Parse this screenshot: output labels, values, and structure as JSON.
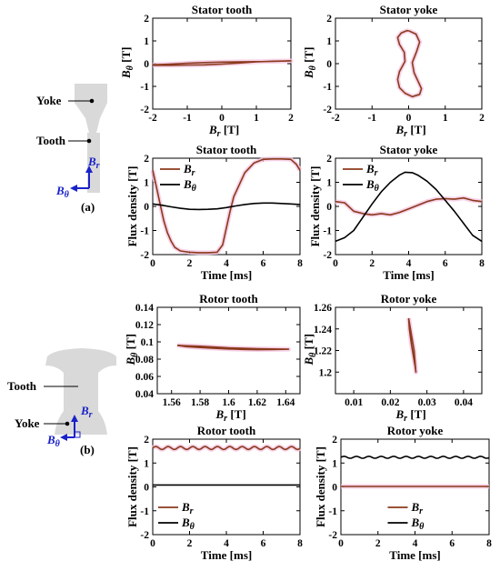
{
  "labels": {
    "yoke_a": "Yoke",
    "tooth_a": "Tooth",
    "br_a": "B",
    "br_a_sub": "r",
    "bt_a": "B",
    "bt_a_sub": "θ",
    "panel_a": "(a)",
    "tooth_b": "Tooth",
    "yoke_b": "Yoke",
    "br_b": "B",
    "br_b_sub": "r",
    "bt_b": "B",
    "bt_b_sub": "θ",
    "panel_b": "(b)"
  },
  "colors": {
    "br": "#8b3a1c",
    "btheta": "#000000",
    "highlight": "#f5c8e4",
    "arrow": "#1a22c8",
    "shape": "#d9d9d9"
  },
  "chart_data": [
    {
      "id": "st_loci",
      "type": "line",
      "title": "Stator tooth",
      "xlabel_main": "B",
      "xlabel_sub": "r",
      "xlabel_unit": " [T]",
      "ylabel_main": "B",
      "ylabel_sub": "θ",
      "ylabel_unit": " [T]",
      "xlim": [
        -2,
        2
      ],
      "ylim": [
        -2,
        2
      ],
      "xticks": [
        -2,
        -1,
        0,
        1,
        2
      ],
      "yticks": [
        -2,
        -1,
        0,
        1,
        2
      ],
      "series": [
        {
          "x": [
            -2,
            -1.5,
            -1,
            -0.5,
            0,
            0.5,
            1,
            1.5,
            2,
            1.5,
            1,
            0.5,
            0,
            -0.5,
            -1,
            -1.5,
            -2
          ],
          "y": [
            -0.05,
            -0.02,
            0.02,
            0.05,
            0.07,
            0.08,
            0.09,
            0.1,
            0.12,
            0.11,
            0.08,
            0.03,
            -0.02,
            -0.05,
            -0.06,
            -0.07,
            -0.07
          ]
        }
      ]
    },
    {
      "id": "sy_loci",
      "type": "line",
      "title": "Stator yoke",
      "xlabel_main": "B",
      "xlabel_sub": "r",
      "xlabel_unit": " [T]",
      "ylabel_main": "B",
      "ylabel_sub": "θ",
      "ylabel_unit": " [T]",
      "xlim": [
        -2,
        2
      ],
      "ylim": [
        -2,
        2
      ],
      "xticks": [
        -2,
        -1,
        0,
        1,
        2
      ],
      "yticks": [
        -2,
        -1,
        0,
        1,
        2
      ],
      "series": [
        {
          "x": [
            0,
            0.2,
            0.3,
            0.22,
            0.1,
            0.15,
            0.25,
            0.35,
            0.3,
            0.1,
            -0.1,
            -0.25,
            -0.3,
            -0.25,
            -0.1,
            -0.12,
            -0.25,
            -0.3,
            -0.2,
            -0.05,
            0
          ],
          "y": [
            1.45,
            1.3,
            0.95,
            0.55,
            0.05,
            -0.4,
            -0.75,
            -1.1,
            -1.35,
            -1.45,
            -1.3,
            -1.05,
            -0.7,
            -0.35,
            0.1,
            0.5,
            0.85,
            1.15,
            1.35,
            1.45,
            1.45
          ]
        }
      ]
    },
    {
      "id": "st_wave",
      "type": "line",
      "title": "Stator tooth",
      "xlabel": "Time [ms]",
      "ylabel": "Flux density [T]",
      "xlim": [
        0,
        8
      ],
      "ylim": [
        -2,
        2
      ],
      "xticks": [
        0,
        2,
        4,
        6,
        8
      ],
      "yticks": [
        -2,
        -1,
        0,
        1,
        2
      ],
      "legend": "top-left",
      "series": [
        {
          "name_main": "B",
          "name_sub": "r",
          "x": [
            0,
            0.2,
            0.4,
            0.6,
            0.8,
            1.0,
            1.2,
            1.5,
            2,
            2.5,
            3,
            3.5,
            3.8,
            4.0,
            4.2,
            4.4,
            4.7,
            5.0,
            5.5,
            6,
            6.5,
            7,
            7.5,
            7.8,
            8
          ],
          "y": [
            1.5,
            0.8,
            0.1,
            -0.6,
            -1.1,
            -1.45,
            -1.7,
            -1.85,
            -1.9,
            -1.92,
            -1.92,
            -1.9,
            -1.6,
            -0.9,
            -0.2,
            0.4,
            0.9,
            1.4,
            1.8,
            1.95,
            1.97,
            1.97,
            1.95,
            1.75,
            1.5
          ]
        },
        {
          "name_main": "B",
          "name_sub": "θ",
          "x": [
            0,
            0.5,
            1,
            1.5,
            2,
            2.5,
            3,
            3.5,
            4,
            4.5,
            5,
            5.5,
            6,
            6.5,
            7,
            7.5,
            8
          ],
          "y": [
            0.1,
            0.05,
            -0.02,
            -0.08,
            -0.12,
            -0.13,
            -0.12,
            -0.1,
            -0.05,
            0.02,
            0.08,
            0.12,
            0.14,
            0.14,
            0.12,
            0.1,
            0.08
          ]
        }
      ]
    },
    {
      "id": "sy_wave",
      "type": "line",
      "title": "Stator yoke",
      "xlabel": "Time [ms]",
      "ylabel": "Flux density [T]",
      "xlim": [
        0,
        8
      ],
      "ylim": [
        -2,
        2
      ],
      "xticks": [
        0,
        2,
        4,
        6,
        8
      ],
      "yticks": [
        -2,
        -1,
        0,
        1,
        2
      ],
      "legend": "top-left",
      "series": [
        {
          "name_main": "B",
          "name_sub": "r",
          "x": [
            0,
            0.5,
            1,
            1.5,
            2,
            2.5,
            3,
            3.5,
            4,
            4.5,
            5,
            5.5,
            6,
            6.5,
            7,
            7.5,
            8
          ],
          "y": [
            0.2,
            0.15,
            -0.2,
            -0.3,
            -0.35,
            -0.3,
            -0.35,
            -0.25,
            -0.1,
            0.05,
            0.2,
            0.3,
            0.32,
            0.3,
            0.35,
            0.25,
            0.2
          ]
        },
        {
          "name_main": "B",
          "name_sub": "θ",
          "x": [
            0,
            0.5,
            1,
            1.5,
            2,
            2.5,
            3,
            3.5,
            3.8,
            4.2,
            4.5,
            5,
            5.5,
            6,
            6.5,
            7,
            7.5,
            8
          ],
          "y": [
            -1.45,
            -1.3,
            -1.0,
            -0.45,
            0.1,
            0.6,
            1.0,
            1.3,
            1.42,
            1.4,
            1.3,
            1.05,
            0.7,
            0.25,
            -0.2,
            -0.7,
            -1.2,
            -1.45
          ]
        }
      ]
    },
    {
      "id": "rt_loci",
      "type": "line",
      "title": "Rotor tooth",
      "xlabel_main": "B",
      "xlabel_sub": "r",
      "xlabel_unit": " [T]",
      "ylabel_main": "B",
      "ylabel_sub": "θ",
      "ylabel_unit": " [T]",
      "xlim": [
        1.55,
        1.65
      ],
      "ylim": [
        0.04,
        0.14
      ],
      "xticks": [
        1.56,
        1.58,
        1.6,
        1.62,
        1.64
      ],
      "yticks": [
        0.04,
        0.06,
        0.08,
        0.1,
        0.12,
        0.14
      ],
      "series": [
        {
          "x": [
            1.564,
            1.57,
            1.58,
            1.59,
            1.6,
            1.61,
            1.62,
            1.63,
            1.642,
            1.63,
            1.62,
            1.61,
            1.6,
            1.59,
            1.58,
            1.57,
            1.564
          ],
          "y": [
            0.096,
            0.0955,
            0.095,
            0.094,
            0.093,
            0.0925,
            0.092,
            0.0918,
            0.0915,
            0.0912,
            0.091,
            0.0913,
            0.0918,
            0.0925,
            0.0935,
            0.0945,
            0.096
          ]
        }
      ]
    },
    {
      "id": "ry_loci",
      "type": "line",
      "title": "Rotor yoke",
      "xlabel_main": "B",
      "xlabel_sub": "r",
      "xlabel_unit": " [T]",
      "ylabel_main": "B",
      "ylabel_sub": "θ",
      "ylabel_unit": " [T]",
      "xlim": [
        0.005,
        0.045
      ],
      "ylim": [
        1.18,
        1.26
      ],
      "xticks": [
        0.01,
        0.02,
        0.03,
        0.04
      ],
      "yticks": [
        1.2,
        1.22,
        1.24,
        1.26
      ],
      "series": [
        {
          "x": [
            0.025,
            0.0255,
            0.026,
            0.0265,
            0.027,
            0.0268,
            0.0263,
            0.0258,
            0.0252,
            0.025
          ],
          "y": [
            1.25,
            1.24,
            1.23,
            1.22,
            1.2,
            1.205,
            1.215,
            1.225,
            1.24,
            1.25
          ]
        }
      ]
    },
    {
      "id": "rt_wave",
      "type": "line",
      "title": "Rotor tooth",
      "xlabel": "Time [ms]",
      "ylabel": "Flux density [T]",
      "xlim": [
        0,
        8
      ],
      "ylim": [
        -2,
        2
      ],
      "xticks": [
        0,
        2,
        4,
        6,
        8
      ],
      "yticks": [
        -2,
        -1,
        0,
        1,
        2
      ],
      "legend": "bottom-left",
      "series": [
        {
          "name_main": "B",
          "name_sub": "r",
          "ripple": {
            "base": 1.63,
            "amp": 0.06,
            "period": 0.67
          }
        },
        {
          "name_main": "B",
          "name_sub": "θ",
          "ripple": {
            "base": 0.08,
            "amp": 0.0,
            "period": 1
          }
        }
      ]
    },
    {
      "id": "ry_wave",
      "type": "line",
      "title": "Rotor yoke",
      "xlabel": "Time [ms]",
      "ylabel": "Flux density [T]",
      "xlim": [
        0,
        8
      ],
      "ylim": [
        -2,
        2
      ],
      "xticks": [
        0,
        2,
        4,
        6,
        8
      ],
      "yticks": [
        -2,
        -1,
        0,
        1,
        2
      ],
      "legend": "bottom-center",
      "series": [
        {
          "name_main": "B",
          "name_sub": "r",
          "ripple": {
            "base": 0.02,
            "amp": 0.0,
            "period": 1
          }
        },
        {
          "name_main": "B",
          "name_sub": "θ",
          "ripple": {
            "base": 1.24,
            "amp": 0.04,
            "period": 0.67
          }
        }
      ]
    }
  ]
}
